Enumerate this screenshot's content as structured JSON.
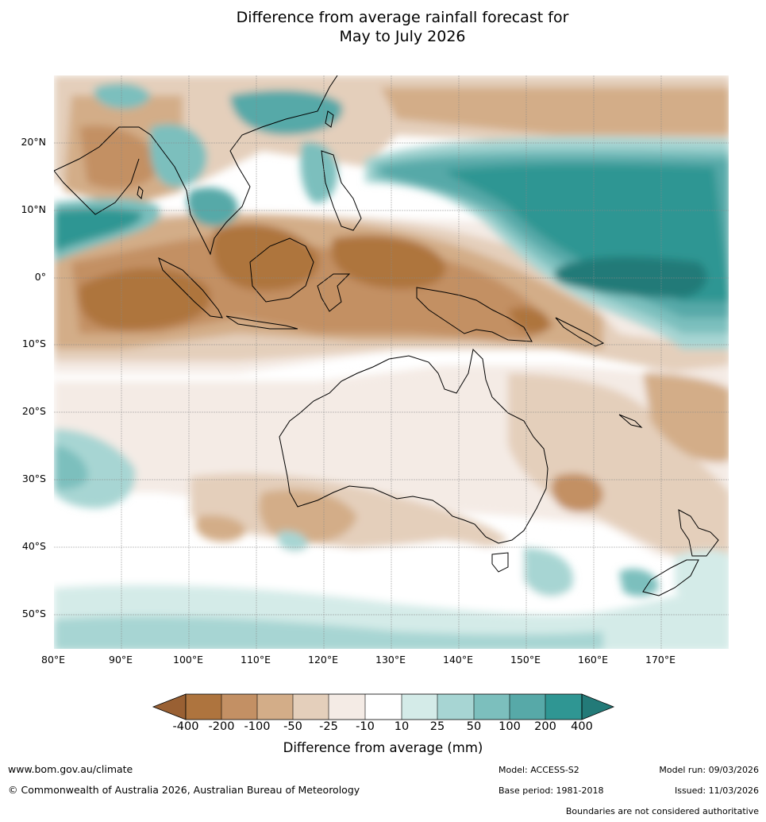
{
  "title": {
    "line1": "Difference from average rainfall forecast for",
    "line2": "May to July 2026"
  },
  "map": {
    "lon_range": [
      80,
      180
    ],
    "lat_range": [
      -55,
      30
    ],
    "lat_ticks": [
      "20°N",
      "10°N",
      "0°",
      "10°S",
      "20°S",
      "30°S",
      "40°S",
      "50°S"
    ],
    "lon_ticks": [
      "80°E",
      "90°E",
      "100°E",
      "110°E",
      "120°E",
      "130°E",
      "140°E",
      "150°E",
      "160°E",
      "170°E"
    ],
    "graticule": true
  },
  "colorbar": {
    "labels": [
      "-400",
      "-200",
      "-100",
      "-50",
      "-25",
      "-10",
      "10",
      "25",
      "50",
      "100",
      "200",
      "400"
    ],
    "colors": [
      "#996033",
      "#ae743e",
      "#c39064",
      "#d3ad88",
      "#e4cfbb",
      "#f4ebe5",
      "#ffffff",
      "#d4ebe8",
      "#a7d5d3",
      "#7cbfbd",
      "#57a9a8",
      "#2f9693",
      "#237a78"
    ],
    "title": "Difference from average (mm)"
  },
  "footer": {
    "url": "www.bom.gov.au/climate",
    "copyright": "© Commonwealth of Australia 2026, Australian Bureau of Meteorology",
    "model": "Model: ACCESS-S2",
    "base_period": "Base period: 1981-2018",
    "model_run": "Model run: 09/03/2026",
    "issued": "Issued: 11/03/2026",
    "disclaimer": "Boundaries are not considered authoritative"
  }
}
